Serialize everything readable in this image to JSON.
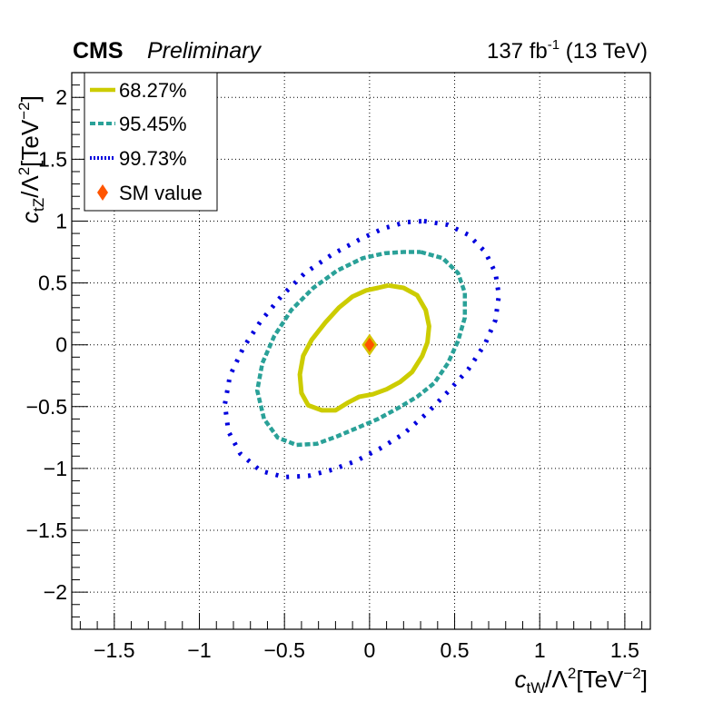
{
  "header": {
    "cms": "CMS",
    "preliminary": "Preliminary",
    "lumi_prefix": "137 fb",
    "lumi_exp": "-1",
    "lumi_suffix": " (13 TeV)"
  },
  "chart_data": {
    "type": "scatter",
    "xlabel": "c_tW/Λ²[TeV⁻²]",
    "ylabel": "c_tZ/Λ²[TeV⁻²]",
    "xlim": [
      -1.75,
      1.65
    ],
    "ylim": [
      -2.3,
      2.2
    ],
    "x_ticks": [
      -1.5,
      -1,
      -0.5,
      0,
      0.5,
      1,
      1.5
    ],
    "x_tick_labels": [
      "−1.5",
      "−1",
      "−0.5",
      "0",
      "0.5",
      "1",
      "1.5"
    ],
    "y_ticks": [
      -2,
      -1.5,
      -1,
      -0.5,
      0,
      0.5,
      1,
      1.5,
      2
    ],
    "y_tick_labels": [
      "−2",
      "−1.5",
      "−1",
      "−0.5",
      "0",
      "0.5",
      "1",
      "1.5",
      "2"
    ],
    "grid": true,
    "legend_position": "top-left",
    "series": [
      {
        "name": "68.27%",
        "color": "#cccc00",
        "style": "solid",
        "x": [
          0.11,
          0.2,
          0.28,
          0.33,
          0.35,
          0.34,
          0.31,
          0.25,
          0.18,
          0.1,
          0.02,
          -0.06,
          -0.13,
          -0.2,
          -0.28,
          -0.36,
          -0.4,
          -0.41,
          -0.39,
          -0.34,
          -0.26,
          -0.18,
          -0.1,
          -0.02,
          0.05,
          0.11
        ],
        "y": [
          0.48,
          0.46,
          0.4,
          0.28,
          0.15,
          0.02,
          -0.09,
          -0.22,
          -0.3,
          -0.36,
          -0.4,
          -0.42,
          -0.47,
          -0.53,
          -0.53,
          -0.49,
          -0.39,
          -0.24,
          -0.09,
          0.04,
          0.18,
          0.3,
          0.39,
          0.44,
          0.46,
          0.48
        ]
      },
      {
        "name": "95.45%",
        "color": "#2aa198",
        "style": "dashed",
        "x": [
          0.3,
          0.43,
          0.52,
          0.56,
          0.56,
          0.52,
          0.46,
          0.38,
          0.28,
          0.17,
          0.05,
          -0.07,
          -0.19,
          -0.31,
          -0.43,
          -0.54,
          -0.62,
          -0.66,
          -0.63,
          -0.56,
          -0.46,
          -0.33,
          -0.19,
          -0.04,
          0.09,
          0.2,
          0.3
        ],
        "y": [
          0.75,
          0.7,
          0.58,
          0.42,
          0.22,
          0.03,
          -0.15,
          -0.31,
          -0.42,
          -0.51,
          -0.6,
          -0.67,
          -0.74,
          -0.8,
          -0.81,
          -0.75,
          -0.6,
          -0.37,
          -0.15,
          0.07,
          0.28,
          0.46,
          0.6,
          0.7,
          0.74,
          0.75,
          0.75
        ]
      },
      {
        "name": "99.73%",
        "color": "#0000dd",
        "style": "dotted",
        "x": [
          0.32,
          0.46,
          0.58,
          0.68,
          0.74,
          0.76,
          0.74,
          0.68,
          0.58,
          0.46,
          0.34,
          0.2,
          0.06,
          -0.08,
          -0.22,
          -0.36,
          -0.5,
          -0.64,
          -0.76,
          -0.83,
          -0.85,
          -0.82,
          -0.74,
          -0.64,
          -0.52,
          -0.38,
          -0.22,
          -0.06,
          0.08,
          0.21,
          0.32
        ],
        "y": [
          1.0,
          0.97,
          0.89,
          0.75,
          0.58,
          0.4,
          0.2,
          0.01,
          -0.2,
          -0.38,
          -0.55,
          -0.72,
          -0.84,
          -0.94,
          -1.01,
          -1.06,
          -1.07,
          -1.02,
          -0.88,
          -0.7,
          -0.48,
          -0.25,
          -0.02,
          0.19,
          0.39,
          0.58,
          0.73,
          0.85,
          0.94,
          0.99,
          1.0
        ]
      },
      {
        "name": "SM value",
        "color": "#ff5500",
        "style": "marker",
        "x": [
          0
        ],
        "y": [
          0
        ]
      }
    ]
  }
}
